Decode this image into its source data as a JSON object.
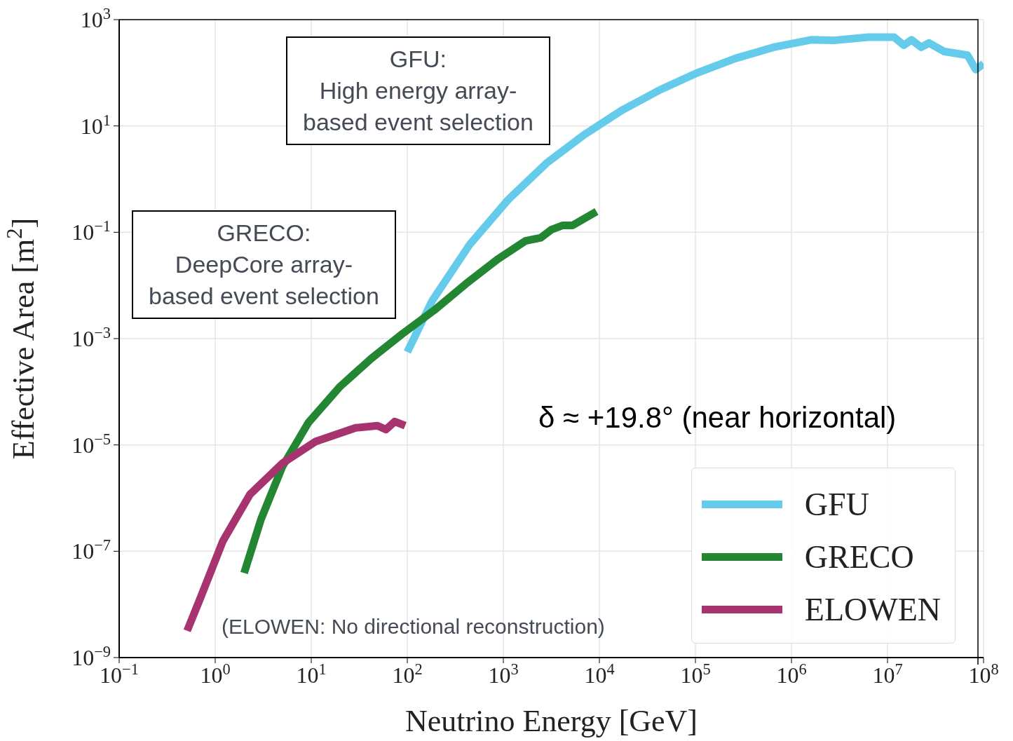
{
  "chart_data": {
    "type": "line",
    "xlabel": "Neutrino Energy [GeV]",
    "ylabel": "Effective Area [m$^{2}$]",
    "log": "xy",
    "grid": true,
    "legend": "bottom right",
    "line_style": "solid",
    "marker": "none",
    "xlim": [
      0.1,
      100000000
    ],
    "ylim": [
      1e-09,
      1000
    ],
    "xticks": [
      {
        "value": 0.1,
        "label": "10$^{−1}$"
      },
      {
        "value": 1,
        "label": "10$^{0}$"
      },
      {
        "value": 10,
        "label": "10$^{1}$"
      },
      {
        "value": 100,
        "label": "10$^{2}$"
      },
      {
        "value": 1000,
        "label": "10$^{3}$"
      },
      {
        "value": 10000,
        "label": "10$^{4}$"
      },
      {
        "value": 100000,
        "label": "10$^{5}$"
      },
      {
        "value": 1000000,
        "label": "10$^{6}$"
      },
      {
        "value": 10000000,
        "label": "10$^{7}$"
      },
      {
        "value": 100000000,
        "label": "10$^{8}$"
      }
    ],
    "yticks": [
      {
        "value": 1e-09,
        "label": "10$^{−9}$"
      },
      {
        "value": 1e-07,
        "label": "10$^{−7}$"
      },
      {
        "value": 1e-05,
        "label": "10$^{−5}$"
      },
      {
        "value": 0.001,
        "label": "10$^{−3}$"
      },
      {
        "value": 0.1,
        "label": "10$^{−1}$"
      },
      {
        "value": 10,
        "label": "10$^{1}$"
      },
      {
        "value": 1000,
        "label": "10$^{3}$"
      }
    ],
    "annotations": [
      "GFU:\nHigh energy array-\nbased event selection",
      "GRECO:\nDeepCore array-\nbased event selection",
      "δ ≈ +19.8° (near horizontal)",
      "(ELOWEN: No directional reconstruction)"
    ],
    "series": [
      {
        "name": "GFU",
        "color": "#64cbea",
        "x": [
          100,
          182,
          447,
          1122,
          2818,
          6918,
          17000,
          43000,
          105000,
          260000,
          650000,
          1600000,
          2750000,
          6300000,
          11700000,
          14800000,
          17800000,
          22400000,
          27000000,
          39000000,
          68000000,
          83000000,
          100000000
        ],
        "values": [
          0.00056,
          0.0052,
          0.059,
          0.41,
          2.0,
          6.8,
          19.5,
          48,
          100,
          186,
          302,
          417,
          407,
          468,
          468,
          331,
          417,
          302,
          363,
          251,
          214,
          115,
          148
        ]
      },
      {
        "name": "GRECO",
        "color": "#238633",
        "x": [
          2.0,
          3.0,
          5.0,
          9.3,
          20,
          42,
          89,
          190,
          407,
          871,
          1700,
          2455,
          3160,
          4170,
          5250,
          9330
        ],
        "values": [
          3.9e-08,
          4e-07,
          3.9e-06,
          2.6e-05,
          0.000126,
          0.00042,
          0.00123,
          0.0034,
          0.0107,
          0.031,
          0.069,
          0.079,
          0.112,
          0.135,
          0.135,
          0.245
        ]
      },
      {
        "name": "ELOWEN",
        "color": "#a8346f",
        "x": [
          0.51,
          0.71,
          1.2,
          2.3,
          5.0,
          11,
          29,
          49,
          60,
          74,
          95
        ],
        "values": [
          3.2e-09,
          1.4e-08,
          1.55e-07,
          1.17e-06,
          4.5e-06,
          1.15e-05,
          2.1e-05,
          2.3e-05,
          1.95e-05,
          2.75e-05,
          2.3e-05
        ]
      }
    ]
  }
}
